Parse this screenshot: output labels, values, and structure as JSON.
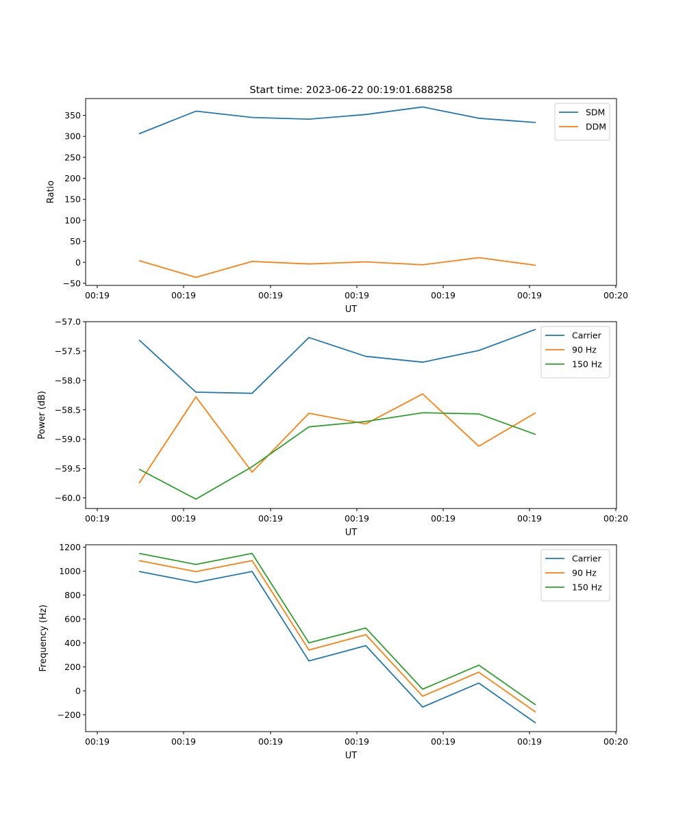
{
  "chart_data": [
    {
      "type": "line",
      "title": "Start time: 2023-06-22 00:19:01.688258",
      "xlabel": "UT",
      "ylabel": "Ratio",
      "x_tick_labels": [
        "00:19",
        "00:19",
        "00:19",
        "00:19",
        "00:19",
        "00:19",
        "00:19"
      ],
      "x_tick_end_label": "00:20",
      "y_ticks": [
        -50,
        0,
        50,
        100,
        150,
        200,
        250,
        300,
        350
      ],
      "ylim": [
        -55,
        390
      ],
      "legend_position": "top-right",
      "series": [
        {
          "name": "SDM",
          "color": "#1f77b4",
          "values": [
            306,
            360,
            345,
            341,
            352,
            370,
            343,
            333
          ]
        },
        {
          "name": "DDM",
          "color": "#ff7f0e",
          "values": [
            4,
            -36,
            2,
            -4,
            1,
            -6,
            11,
            -7
          ]
        }
      ]
    },
    {
      "type": "line",
      "title": "",
      "xlabel": "UT",
      "ylabel": "Power (dB)",
      "x_tick_labels": [
        "00:19",
        "00:19",
        "00:19",
        "00:19",
        "00:19",
        "00:19",
        "00:19"
      ],
      "x_tick_end_label": "00:20",
      "y_ticks": [
        -60.0,
        -59.5,
        -59.0,
        -58.5,
        -58.0,
        -57.5,
        -57.0
      ],
      "y_tick_labels": [
        "−60.0",
        "−59.5",
        "−59.0",
        "−58.5",
        "−58.0",
        "−57.5",
        "−57.0"
      ],
      "ylim": [
        -60.18,
        -57.0
      ],
      "legend_position": "top-right",
      "series": [
        {
          "name": "Carrier",
          "color": "#1f77b4",
          "values": [
            -57.31,
            -58.2,
            -58.22,
            -57.27,
            -57.59,
            -57.69,
            -57.49,
            -57.13
          ]
        },
        {
          "name": "90 Hz",
          "color": "#ff7f0e",
          "values": [
            -59.75,
            -58.28,
            -59.56,
            -58.56,
            -58.74,
            -58.23,
            -59.12,
            -58.55
          ]
        },
        {
          "name": "150 Hz",
          "color": "#2ca02c",
          "values": [
            -59.51,
            -60.02,
            -59.47,
            -58.79,
            -58.7,
            -58.55,
            -58.57,
            -58.92
          ]
        }
      ]
    },
    {
      "type": "line",
      "title": "",
      "xlabel": "UT",
      "ylabel": "Frequency (Hz)",
      "x_tick_labels": [
        "00:19",
        "00:19",
        "00:19",
        "00:19",
        "00:19",
        "00:19",
        "00:19"
      ],
      "x_tick_end_label": "00:20",
      "y_ticks": [
        -200,
        0,
        200,
        400,
        600,
        800,
        1000,
        1200
      ],
      "y_tick_labels": [
        "−200",
        "0",
        "200",
        "400",
        "600",
        "800",
        "1000",
        "1200"
      ],
      "ylim": [
        -340,
        1220
      ],
      "legend_position": "top-right",
      "series": [
        {
          "name": "Carrier",
          "color": "#1f77b4",
          "values": [
            997,
            905,
            997,
            250,
            378,
            -135,
            65,
            -268
          ]
        },
        {
          "name": "90 Hz",
          "color": "#ff7f0e",
          "values": [
            1088,
            996,
            1088,
            341,
            469,
            -44,
            156,
            -177
          ]
        },
        {
          "name": "150 Hz",
          "color": "#2ca02c",
          "values": [
            1148,
            1056,
            1148,
            401,
            525,
            14,
            215,
            -117
          ]
        }
      ]
    }
  ]
}
